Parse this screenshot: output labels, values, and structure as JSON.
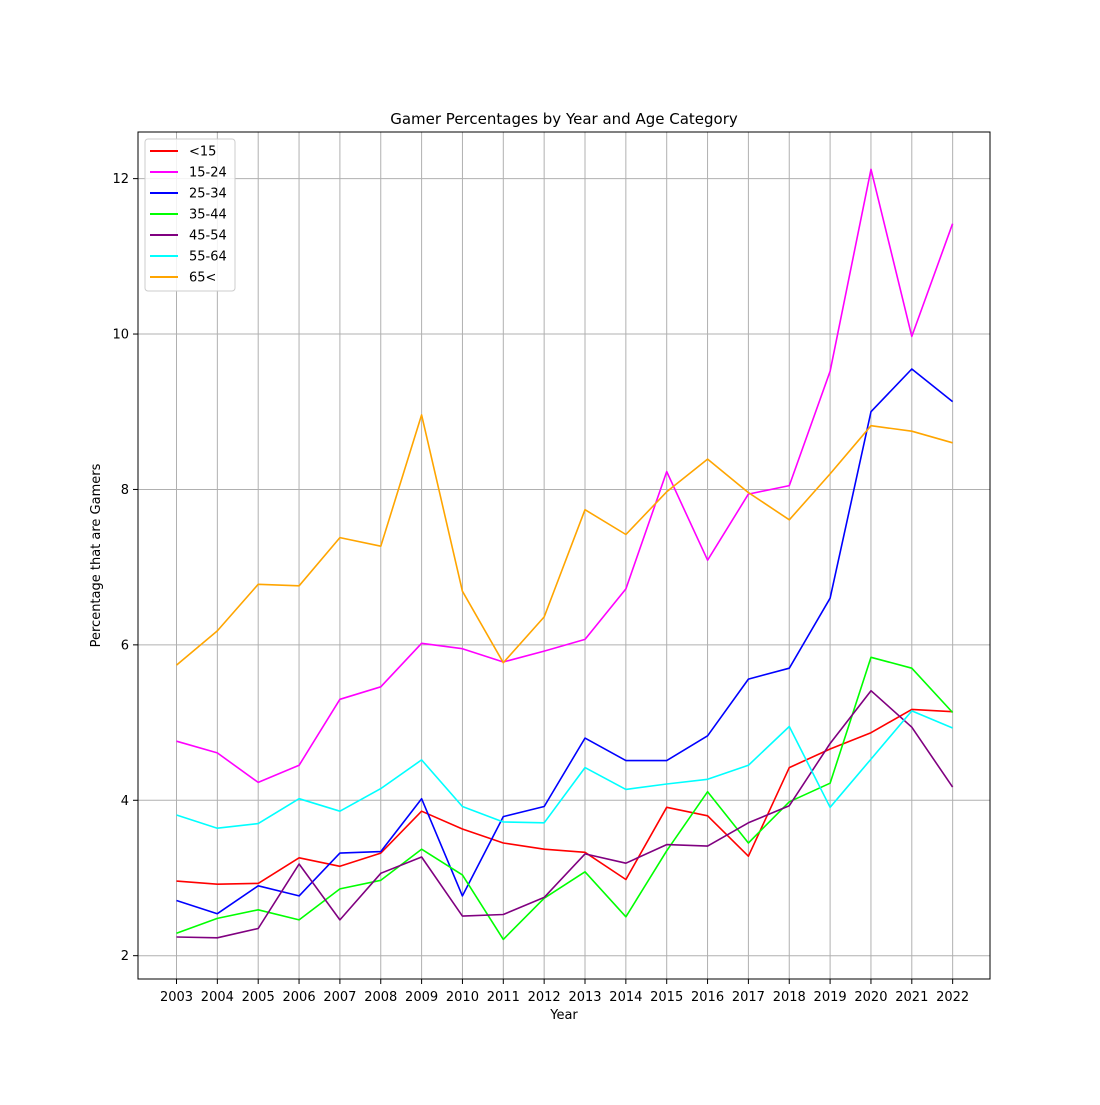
{
  "chart_data": {
    "type": "line",
    "title": "Gamer Percentages by Year and Age Category",
    "xlabel": "Year",
    "ylabel": "Percentage that are Gamers",
    "x": [
      "2003",
      "2004",
      "2005",
      "2006",
      "2007",
      "2008",
      "2009",
      "2010",
      "2011",
      "2012",
      "2013",
      "2014",
      "2015",
      "2016",
      "2017",
      "2018",
      "2019",
      "2020",
      "2021",
      "2022"
    ],
    "yticks": [
      "2",
      "4",
      "6",
      "8",
      "10",
      "12"
    ],
    "ylim": [
      1.7,
      12.6
    ],
    "grid": true,
    "legend_position": "upper-left",
    "series": [
      {
        "name": "<15",
        "color": "#ff0000",
        "values": [
          2.96,
          2.92,
          2.93,
          3.26,
          3.15,
          3.32,
          3.86,
          3.63,
          3.45,
          3.37,
          3.33,
          2.98,
          3.91,
          3.8,
          3.28,
          4.42,
          4.66,
          4.87,
          5.17,
          5.14
        ]
      },
      {
        "name": "15-24",
        "color": "#ff00ff",
        "values": [
          4.76,
          4.61,
          4.23,
          4.45,
          5.3,
          5.46,
          6.02,
          5.95,
          5.78,
          5.92,
          6.07,
          6.72,
          8.23,
          7.09,
          7.94,
          8.05,
          9.52,
          12.12,
          9.97,
          11.42
        ]
      },
      {
        "name": "25-34",
        "color": "#0000ff",
        "values": [
          2.71,
          2.54,
          2.9,
          2.77,
          3.32,
          3.34,
          4.02,
          2.77,
          3.79,
          3.92,
          4.8,
          4.51,
          4.51,
          4.83,
          5.56,
          5.7,
          6.6,
          9.0,
          9.55,
          9.13
        ]
      },
      {
        "name": "35-44",
        "color": "#00ff00",
        "values": [
          2.29,
          2.48,
          2.59,
          2.46,
          2.86,
          2.97,
          3.37,
          3.04,
          2.21,
          2.74,
          3.08,
          2.5,
          3.35,
          4.11,
          3.45,
          3.98,
          4.22,
          5.84,
          5.7,
          5.13
        ]
      },
      {
        "name": "45-54",
        "color": "#800080",
        "values": [
          2.24,
          2.23,
          2.35,
          3.18,
          2.46,
          3.06,
          3.27,
          2.51,
          2.53,
          2.75,
          3.31,
          3.19,
          3.43,
          3.41,
          3.71,
          3.93,
          4.73,
          5.41,
          4.94,
          4.17
        ]
      },
      {
        "name": "55-64",
        "color": "#00ffff",
        "values": [
          3.81,
          3.64,
          3.7,
          4.02,
          3.86,
          4.15,
          4.52,
          3.92,
          3.72,
          3.71,
          4.42,
          4.14,
          4.21,
          4.27,
          4.45,
          4.95,
          3.91,
          4.53,
          5.15,
          4.93
        ]
      },
      {
        "name": "65<",
        "color": "#ffa500",
        "values": [
          5.74,
          6.18,
          6.78,
          6.76,
          7.38,
          7.27,
          8.96,
          6.69,
          5.77,
          6.36,
          7.74,
          7.42,
          7.97,
          8.39,
          7.96,
          7.61,
          8.2,
          8.82,
          8.75,
          8.6
        ]
      }
    ]
  }
}
